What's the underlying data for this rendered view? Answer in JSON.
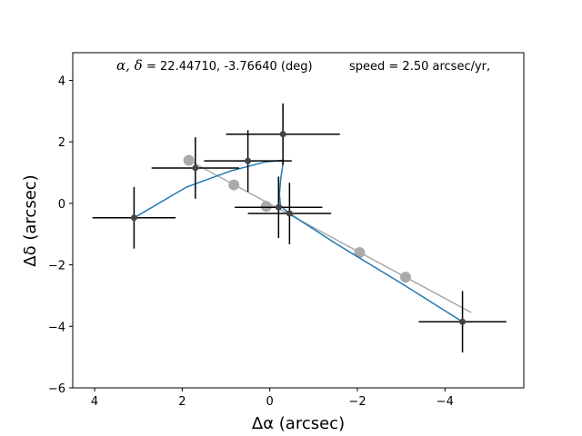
{
  "chart_data": {
    "type": "scatter",
    "xlabel": "Δα (arcsec)",
    "ylabel": "Δδ (arcsec)",
    "xlim": [
      4.5,
      -5.8
    ],
    "ylim": [
      -6,
      4.9
    ],
    "xticks": [
      4,
      2,
      0,
      -2,
      -4
    ],
    "yticks": [
      -6,
      -4,
      -2,
      0,
      2,
      4
    ],
    "x_tick_labels": [
      "4",
      "2",
      "0",
      "−2",
      "−4"
    ],
    "y_tick_labels": [
      "−6",
      "−4",
      "−2",
      "0",
      "2",
      "4"
    ],
    "annotation": {
      "symbol": "α, δ",
      "coords": " = 22.44710, -3.76640 (deg)",
      "speed": "speed = 2.50 arcsec/yr,"
    },
    "colors": {
      "observed": "#444444",
      "errorbar": "#000000",
      "model_curve": "#1f77b4",
      "linear_motion": "#aaaaaa"
    },
    "series": [
      {
        "points": [
          {
            "x": 3.1,
            "y": -0.47,
            "xerr": 0.95,
            "yerr": 1.0
          },
          {
            "x": 1.7,
            "y": 1.15,
            "xerr": 1.0,
            "yerr": 1.0
          },
          {
            "x": 0.5,
            "y": 1.38,
            "xerr": 1.0,
            "yerr": 1.0
          },
          {
            "x": -0.3,
            "y": 2.25,
            "xerr": 1.3,
            "yerr": 1.0
          },
          {
            "x": -0.2,
            "y": -0.13,
            "xerr": 1.0,
            "yerr": 1.0
          },
          {
            "x": -0.45,
            "y": -0.33,
            "xerr": 0.95,
            "yerr": 1.0
          },
          {
            "x": -4.4,
            "y": -3.85,
            "xerr": 1.0,
            "yerr": 1.0
          }
        ]
      },
      {
        "x": [
          3.1,
          1.7,
          0.5,
          -0.3,
          -0.2,
          -0.45,
          -4.4
        ],
        "y": [
          -0.47,
          1.15,
          1.38,
          2.25,
          -0.13,
          -0.33,
          -3.85
        ],
        "curve_x": [
          3.1,
          1.9,
          0.9,
          0.1,
          -0.3,
          -0.29,
          -0.25,
          -0.22,
          -0.24,
          -0.3,
          -0.45,
          -1.5,
          -3.0,
          -4.4
        ],
        "curve_y": [
          -0.47,
          0.53,
          1.05,
          1.35,
          1.4,
          1.2,
          0.8,
          0.3,
          -0.05,
          -0.15,
          -0.33,
          -1.3,
          -2.6,
          -3.85
        ]
      },
      {
        "x": [
          1.85,
          0.82,
          0.08,
          -2.05,
          -3.1
        ],
        "y": [
          1.4,
          0.6,
          -0.1,
          -1.6,
          -2.4
        ],
        "line_x": [
          1.85,
          -4.6
        ],
        "line_y": [
          1.4,
          -3.55
        ]
      }
    ]
  }
}
